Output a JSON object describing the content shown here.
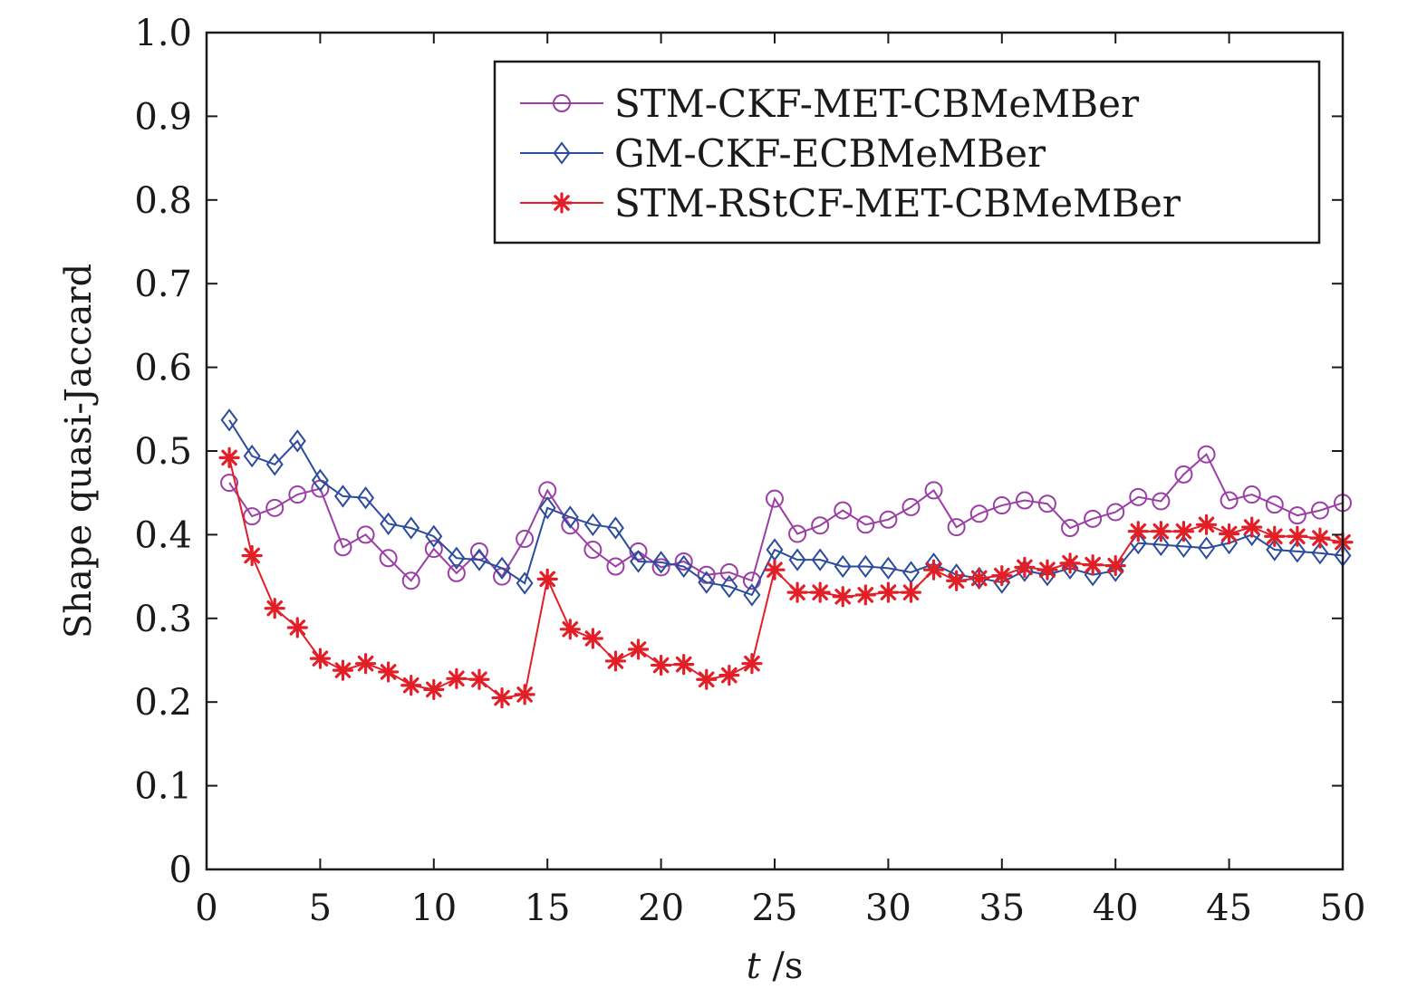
{
  "chart_data": {
    "type": "line",
    "xlabel_italic": "t",
    "xlabel_rest": " /s",
    "ylabel": "Shape quasi-Jaccard",
    "xlim": [
      0,
      50
    ],
    "ylim": [
      0,
      1.0
    ],
    "x_ticks": [
      0,
      5,
      10,
      15,
      20,
      25,
      30,
      35,
      40,
      45,
      50
    ],
    "y_ticks": [
      0,
      0.1,
      0.2,
      0.3,
      0.4,
      0.5,
      0.6,
      0.7,
      0.8,
      0.9,
      1.0
    ],
    "x_tick_labels": [
      "0",
      "5",
      "10",
      "15",
      "20",
      "25",
      "30",
      "35",
      "40",
      "45",
      "50"
    ],
    "y_tick_labels": [
      "0",
      "0.1",
      "0.2",
      "0.3",
      "0.4",
      "0.5",
      "0.6",
      "0.7",
      "0.8",
      "0.9",
      "1.0"
    ],
    "grid": false,
    "legend_position": "top-right",
    "x": [
      1,
      2,
      3,
      4,
      5,
      6,
      7,
      8,
      9,
      10,
      11,
      12,
      13,
      14,
      15,
      16,
      17,
      18,
      19,
      20,
      21,
      22,
      23,
      24,
      25,
      26,
      27,
      28,
      29,
      30,
      31,
      32,
      33,
      34,
      35,
      36,
      37,
      38,
      39,
      40,
      41,
      42,
      43,
      44,
      45,
      46,
      47,
      48,
      49,
      50
    ],
    "series": [
      {
        "name": "STM-CKF-MET-CBMeMBer",
        "color": "#9b3fa6",
        "marker": "circle",
        "values": [
          0.462,
          0.422,
          0.432,
          0.448,
          0.455,
          0.385,
          0.4,
          0.372,
          0.345,
          0.383,
          0.354,
          0.38,
          0.35,
          0.395,
          0.453,
          0.411,
          0.382,
          0.362,
          0.38,
          0.361,
          0.368,
          0.352,
          0.355,
          0.345,
          0.443,
          0.401,
          0.411,
          0.429,
          0.412,
          0.418,
          0.433,
          0.453,
          0.409,
          0.425,
          0.435,
          0.441,
          0.437,
          0.408,
          0.419,
          0.427,
          0.445,
          0.44,
          0.472,
          0.496,
          0.441,
          0.448,
          0.436,
          0.423,
          0.429,
          0.438
        ]
      },
      {
        "name": "GM-CKF-ECBMeMBer",
        "color": "#2b4c9c",
        "marker": "diamond",
        "values": [
          0.537,
          0.494,
          0.484,
          0.512,
          0.465,
          0.446,
          0.444,
          0.413,
          0.408,
          0.398,
          0.372,
          0.37,
          0.36,
          0.342,
          0.432,
          0.421,
          0.412,
          0.408,
          0.368,
          0.367,
          0.362,
          0.343,
          0.338,
          0.328,
          0.382,
          0.37,
          0.37,
          0.362,
          0.362,
          0.36,
          0.355,
          0.365,
          0.352,
          0.348,
          0.343,
          0.357,
          0.352,
          0.36,
          0.352,
          0.357,
          0.39,
          0.388,
          0.386,
          0.384,
          0.39,
          0.4,
          0.382,
          0.38,
          0.378,
          0.375
        ]
      },
      {
        "name": "STM-RStCF-MET-CBMeMBer",
        "color": "#e21f26",
        "marker": "star",
        "values": [
          0.492,
          0.375,
          0.312,
          0.289,
          0.252,
          0.238,
          0.246,
          0.236,
          0.22,
          0.215,
          0.228,
          0.227,
          0.205,
          0.209,
          0.347,
          0.287,
          0.276,
          0.249,
          0.263,
          0.244,
          0.245,
          0.227,
          0.232,
          0.246,
          0.358,
          0.331,
          0.331,
          0.326,
          0.328,
          0.331,
          0.331,
          0.358,
          0.345,
          0.348,
          0.351,
          0.361,
          0.358,
          0.366,
          0.364,
          0.363,
          0.404,
          0.404,
          0.404,
          0.412,
          0.401,
          0.409,
          0.398,
          0.398,
          0.396,
          0.391
        ]
      }
    ]
  }
}
